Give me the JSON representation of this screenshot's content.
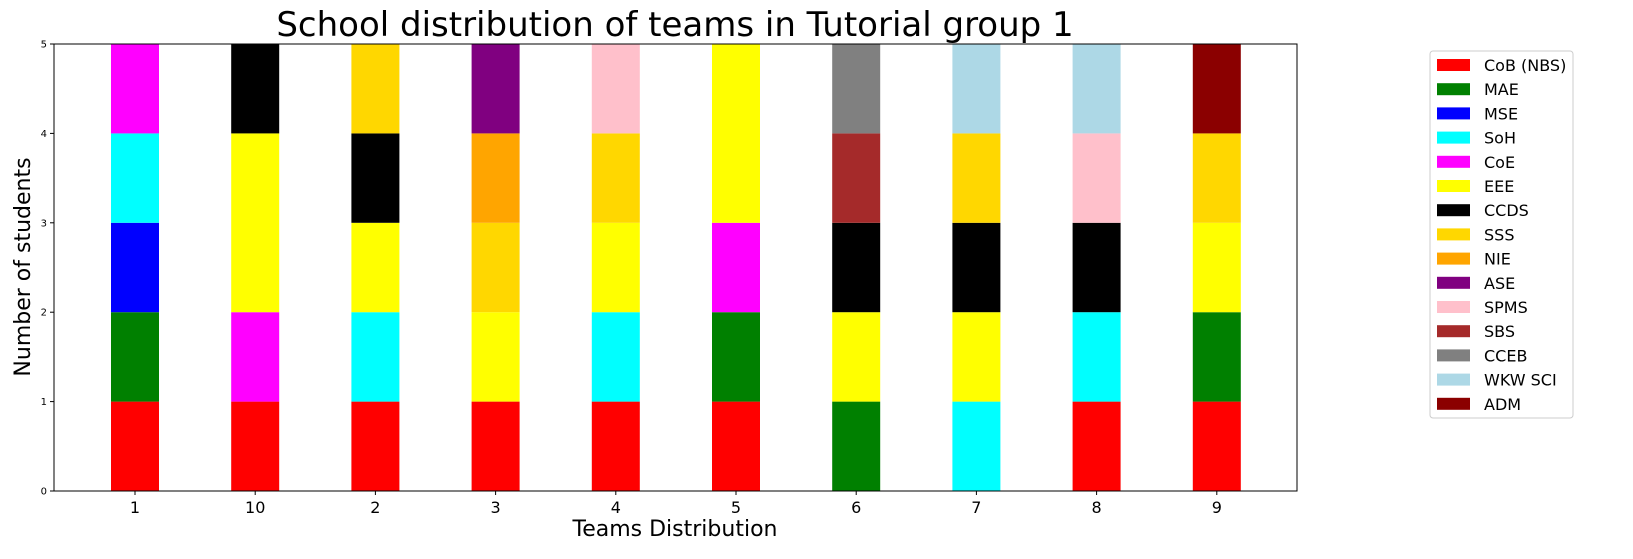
{
  "chart_data": {
    "type": "bar",
    "stacked": true,
    "title": "School distribution of teams in Tutorial group 1",
    "xlabel": "Teams Distribution",
    "ylabel": "Number of students",
    "ylim": [
      0,
      5
    ],
    "yticks": [
      0,
      1,
      2,
      3,
      4,
      5
    ],
    "grid": false,
    "legend_position": "right, outside plot",
    "categories": [
      "1",
      "10",
      "2",
      "3",
      "4",
      "5",
      "6",
      "7",
      "8",
      "9"
    ],
    "series": [
      {
        "name": "CoB (NBS)",
        "color": "#ff0000",
        "values": [
          1,
          1,
          1,
          1,
          1,
          1,
          0,
          0,
          1,
          1
        ]
      },
      {
        "name": "MAE",
        "color": "#008000",
        "values": [
          1,
          0,
          0,
          0,
          0,
          1,
          1,
          0,
          0,
          1
        ]
      },
      {
        "name": "MSE",
        "color": "#0000ff",
        "values": [
          1,
          0,
          0,
          0,
          0,
          0,
          0,
          0,
          0,
          0
        ]
      },
      {
        "name": "SoH",
        "color": "#00ffff",
        "values": [
          1,
          0,
          1,
          0,
          1,
          0,
          0,
          1,
          1,
          0
        ]
      },
      {
        "name": "CoE",
        "color": "#ff00ff",
        "values": [
          1,
          1,
          0,
          0,
          0,
          1,
          0,
          0,
          0,
          0
        ]
      },
      {
        "name": "EEE",
        "color": "#ffff00",
        "values": [
          0,
          2,
          1,
          1,
          1,
          2,
          1,
          1,
          0,
          1
        ]
      },
      {
        "name": "CCDS",
        "color": "#000000",
        "values": [
          0,
          1,
          1,
          0,
          0,
          0,
          1,
          1,
          1,
          0
        ]
      },
      {
        "name": "SSS",
        "color": "#ffd700",
        "values": [
          0,
          0,
          1,
          1,
          1,
          0,
          0,
          1,
          0,
          1
        ]
      },
      {
        "name": "NIE",
        "color": "#ffa500",
        "values": [
          0,
          0,
          0,
          1,
          0,
          0,
          0,
          0,
          0,
          0
        ]
      },
      {
        "name": "ASE",
        "color": "#800080",
        "values": [
          0,
          0,
          0,
          1,
          0,
          0,
          0,
          0,
          0,
          0
        ]
      },
      {
        "name": "SPMS",
        "color": "#ffc0cb",
        "values": [
          0,
          0,
          0,
          0,
          1,
          0,
          0,
          0,
          1,
          0
        ]
      },
      {
        "name": "SBS",
        "color": "#a52a2a",
        "values": [
          0,
          0,
          0,
          0,
          0,
          0,
          1,
          0,
          0,
          0
        ]
      },
      {
        "name": "CCEB",
        "color": "#808080",
        "values": [
          0,
          0,
          0,
          0,
          0,
          0,
          1,
          0,
          0,
          0
        ]
      },
      {
        "name": "WKW SCI",
        "color": "#add8e6",
        "values": [
          0,
          0,
          0,
          0,
          0,
          0,
          0,
          1,
          1,
          0
        ]
      },
      {
        "name": "ADM",
        "color": "#8b0000",
        "values": [
          0,
          0,
          0,
          0,
          0,
          0,
          0,
          0,
          0,
          1
        ]
      }
    ]
  }
}
